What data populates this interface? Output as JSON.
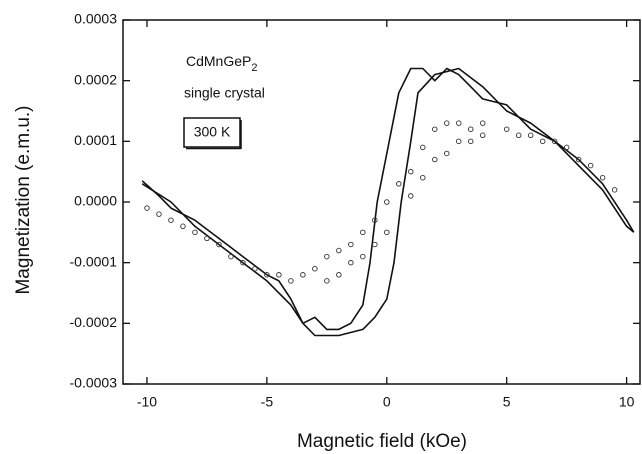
{
  "chart_data": {
    "type": "line",
    "x_label": "Magnetic field (kOe)",
    "y_label": "Magnetization (e.m.u.)",
    "sample_name": "CdMnGeP",
    "sample_subscript": "2",
    "sample_form": "single crystal",
    "temperature": "300 K",
    "xlim": [
      -11,
      10.6
    ],
    "ylim": [
      -0.0003,
      0.0003
    ],
    "xticks": [
      -10,
      -5,
      0,
      5,
      10
    ],
    "yticks": [
      {
        "value": 0.0003,
        "label": "0.0003"
      },
      {
        "value": 0.0002,
        "label": "0.0002"
      },
      {
        "value": 0.0001,
        "label": "0.0001"
      },
      {
        "value": 0,
        "label": "0.0000"
      },
      {
        "value": -0.0001,
        "label": "-0.0001"
      },
      {
        "value": -0.0002,
        "label": "-0.0002"
      },
      {
        "value": -0.0003,
        "label": "-0.0003"
      }
    ],
    "series": [
      {
        "type": "line",
        "color": "#111111",
        "x": [
          -10.2,
          -9.5,
          -9,
          -8,
          -7,
          -6,
          -5,
          -4.5,
          -4,
          -3.5,
          -3,
          -2.5,
          -2,
          -1.5,
          -1,
          -0.7,
          -0.4,
          0,
          0.5,
          1,
          1.5,
          2,
          2.5,
          3,
          3.5,
          4,
          5,
          6,
          7,
          8,
          9,
          10,
          10.3
        ],
        "values": [
          3.5e-05,
          1e-05,
          -1e-05,
          -3e-05,
          -6e-05,
          -9e-05,
          -0.00012,
          -0.00013,
          -0.00016,
          -0.0002,
          -0.00019,
          -0.00021,
          -0.00021,
          -0.0002,
          -0.00017,
          -0.0001,
          0.0,
          8e-05,
          0.00018,
          0.00022,
          0.00022,
          0.0002,
          0.00022,
          0.00021,
          0.00019,
          0.00017,
          0.00016,
          0.00012,
          0.0001,
          6e-05,
          2e-05,
          -4e-05,
          -5e-05
        ]
      },
      {
        "type": "line",
        "color": "#111111",
        "x": [
          -10.2,
          -9,
          -8,
          -7,
          -6,
          -5,
          -4,
          -3.5,
          -3,
          -2,
          -1,
          -0.5,
          0,
          0.3,
          0.6,
          1,
          1.3,
          2,
          3,
          4,
          5,
          6,
          7,
          8,
          9,
          10,
          10.3
        ],
        "values": [
          3e-05,
          0.0,
          -4e-05,
          -7e-05,
          -0.0001,
          -0.00013,
          -0.00017,
          -0.0002,
          -0.00022,
          -0.00022,
          -0.00021,
          -0.00019,
          -0.00016,
          -0.0001,
          0.0,
          0.0001,
          0.00018,
          0.00021,
          0.00022,
          0.00019,
          0.00015,
          0.00013,
          0.0001,
          7e-05,
          3e-05,
          -3e-05,
          -5e-05
        ]
      },
      {
        "type": "scatter",
        "color": "#333333",
        "x": [
          -10,
          -9.5,
          -9,
          -8.5,
          -8,
          -7.5,
          -7,
          -6.5,
          -6,
          -5.5,
          -5,
          -4.5,
          -4,
          -3.5,
          -3,
          -2.5,
          -2,
          -1.5,
          -1,
          -0.5,
          0,
          0.5,
          1,
          1.5,
          2,
          2.5,
          3,
          3.5,
          4,
          5,
          5.5,
          6,
          6.5,
          7,
          7.5,
          8,
          8.5,
          9,
          9.5
        ],
        "values": [
          -1e-05,
          -2e-05,
          -3e-05,
          -4e-05,
          -5e-05,
          -6e-05,
          -7e-05,
          -9e-05,
          -0.0001,
          -0.00011,
          -0.00012,
          -0.00012,
          -0.00013,
          -0.00012,
          -0.00011,
          -9e-05,
          -8e-05,
          -7e-05,
          -5e-05,
          -3e-05,
          0.0,
          3e-05,
          5e-05,
          9e-05,
          0.00012,
          0.00013,
          0.00013,
          0.00012,
          0.00013,
          0.00012,
          0.00011,
          0.00011,
          0.0001,
          0.0001,
          9e-05,
          7e-05,
          6e-05,
          4e-05,
          2e-05
        ]
      },
      {
        "type": "scatter",
        "color": "#333333",
        "x": [
          -2.5,
          -2,
          -1.5,
          -1,
          -0.5,
          0,
          1,
          1.5,
          2,
          2.5,
          3,
          3.5,
          4
        ],
        "values": [
          -0.00013,
          -0.00012,
          -0.0001,
          -9e-05,
          -7e-05,
          -5e-05,
          1e-05,
          4e-05,
          7e-05,
          8e-05,
          0.0001,
          0.0001,
          0.00011
        ]
      }
    ]
  }
}
